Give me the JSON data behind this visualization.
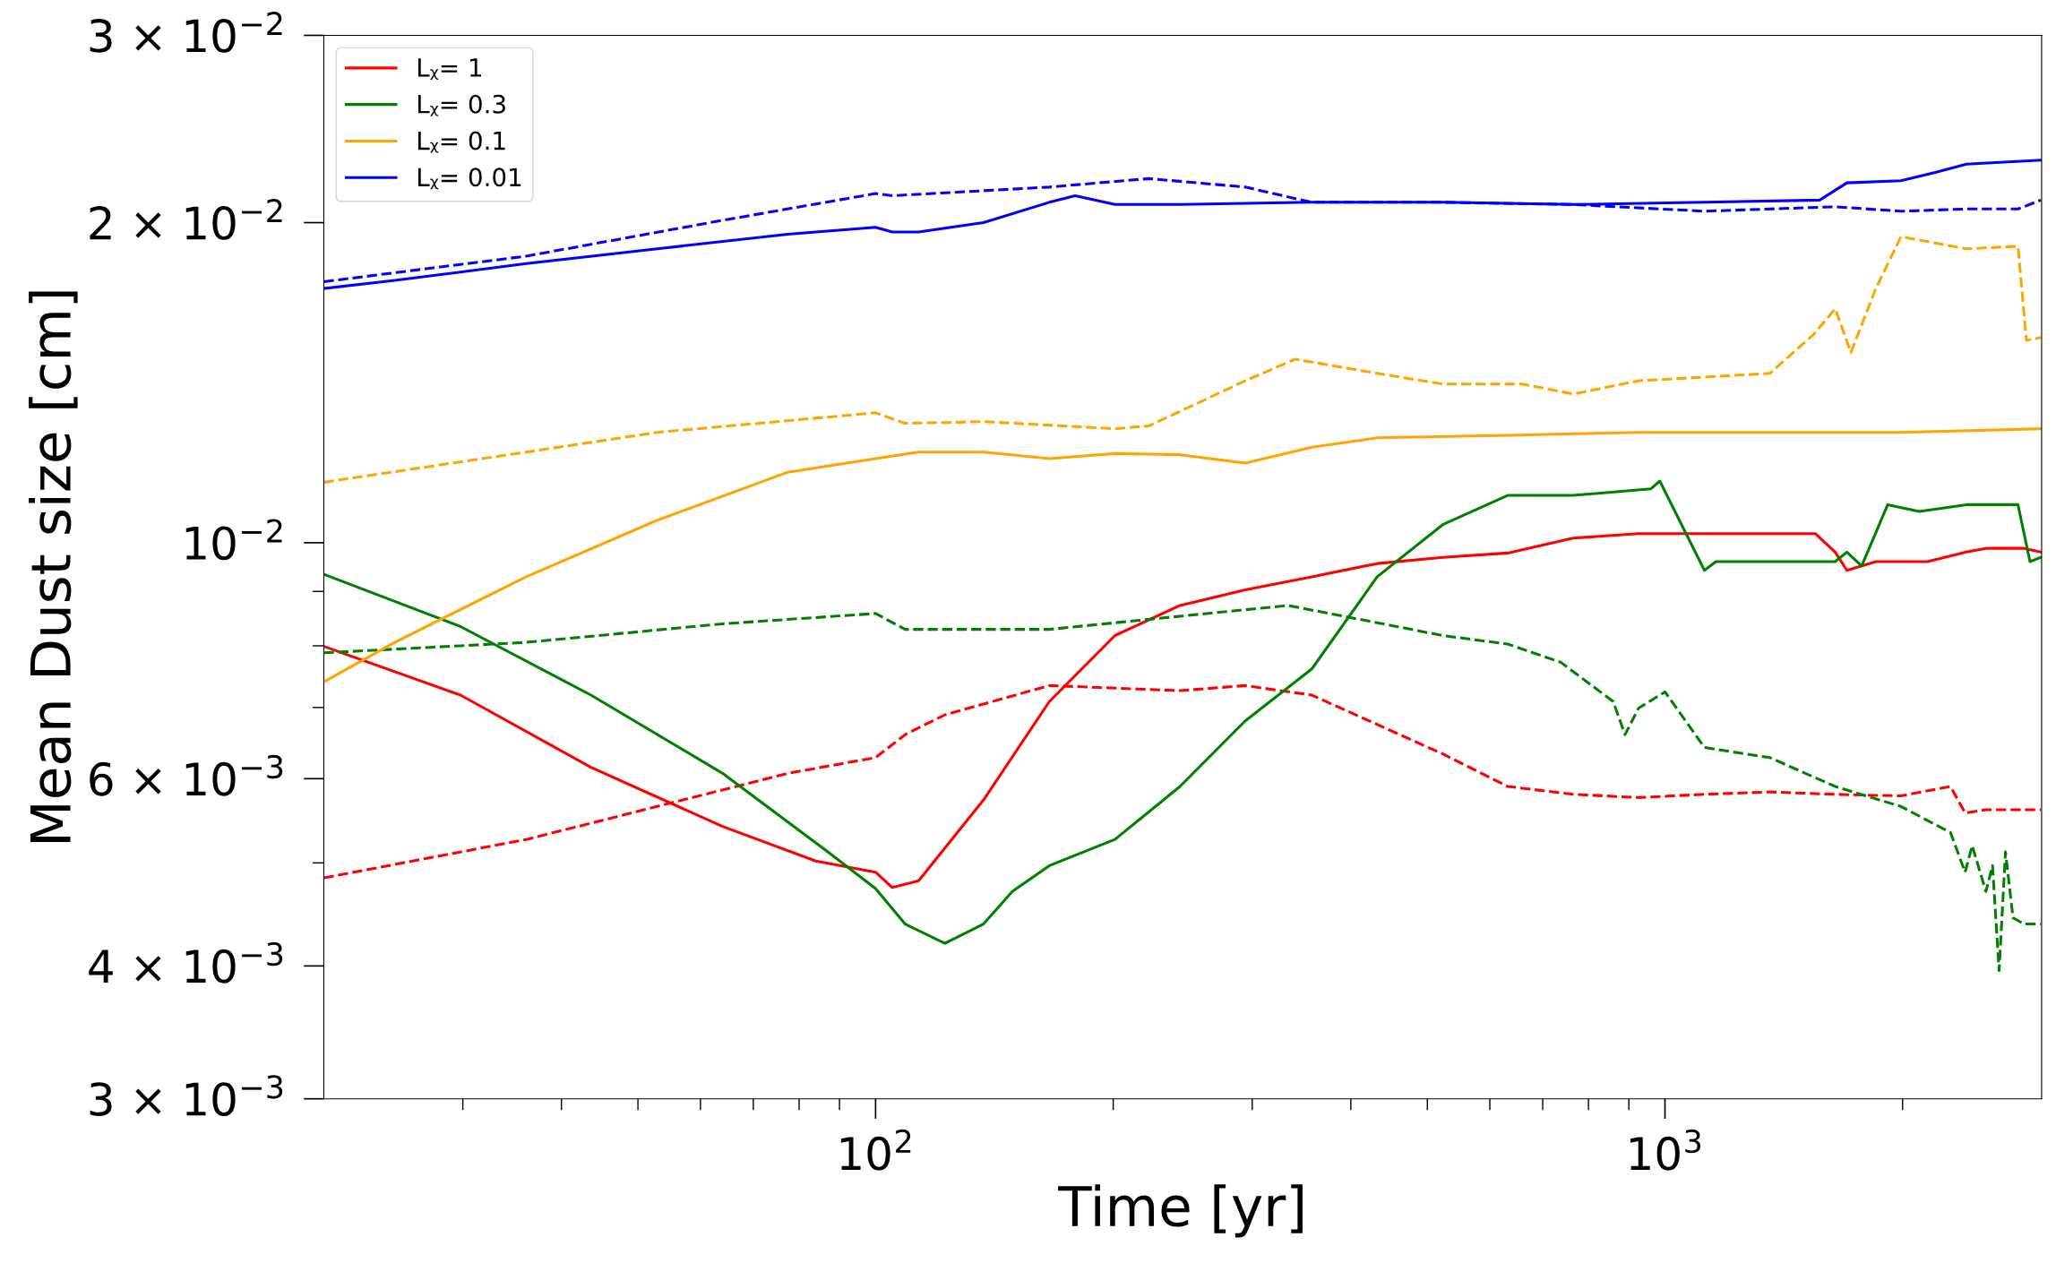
{
  "chart_data": {
    "type": "line",
    "xlabel": "Time [yr]",
    "ylabel": "Mean Dust size [cm]",
    "log": "xy",
    "xlim": [
      20,
      3000
    ],
    "ylim": [
      0.003,
      0.03
    ],
    "xticks": [
      {
        "value": 100,
        "label": "10$^{2}$"
      },
      {
        "value": 1000,
        "label": "10$^{3}$"
      },
      {
        "value": 30,
        "label": null
      },
      {
        "value": 40,
        "label": null
      },
      {
        "value": 50,
        "label": null
      },
      {
        "value": 60,
        "label": null
      },
      {
        "value": 70,
        "label": null
      },
      {
        "value": 80,
        "label": null
      },
      {
        "value": 90,
        "label": null
      },
      {
        "value": 200,
        "label": null
      },
      {
        "value": 300,
        "label": null
      },
      {
        "value": 400,
        "label": null
      },
      {
        "value": 500,
        "label": null
      },
      {
        "value": 600,
        "label": null
      },
      {
        "value": 700,
        "label": null
      },
      {
        "value": 800,
        "label": null
      },
      {
        "value": 900,
        "label": null
      },
      {
        "value": 2000,
        "label": null
      }
    ],
    "yticks": [
      {
        "value": 0.003,
        "label": "3 × 10$^{−3}$"
      },
      {
        "value": 0.004,
        "label": "4 × 10$^{−3}$"
      },
      {
        "value": 0.006,
        "label": "6 × 10$^{−3}$"
      },
      {
        "value": 0.01,
        "label": "10$^{−2}$"
      },
      {
        "value": 0.02,
        "label": "2 × 10$^{−2}$"
      },
      {
        "value": 0.03,
        "label": "3 × 10$^{−2}$"
      },
      {
        "value": 0.005,
        "label": null
      },
      {
        "value": 0.007,
        "label": null
      },
      {
        "value": 0.008,
        "label": null
      },
      {
        "value": 0.009,
        "label": null
      }
    ],
    "grid": false,
    "legend": "top left",
    "marker": "none",
    "series": [
      {
        "name": "Lᵪ= 1",
        "color": "#ff0000",
        "line_style": "solid",
        "x": [
          20,
          29.8,
          43.6,
          64.0,
          84,
          100,
          105,
          113.4,
          137,
          166,
          201,
          243,
          294,
          357,
          432,
          523,
          632,
          765,
          926,
          1122,
          1550,
          1643,
          1700,
          1850,
          2150,
          2409,
          2550,
          2850,
          2993
        ],
        "values": [
          0.00799,
          0.00719,
          0.00615,
          0.00541,
          0.00502,
          0.0049,
          0.00474,
          0.00481,
          0.00573,
          0.00709,
          0.00818,
          0.00873,
          0.00903,
          0.00929,
          0.00956,
          0.00969,
          0.00978,
          0.0101,
          0.0102,
          0.0102,
          0.0102,
          0.0098,
          0.00942,
          0.0096,
          0.0096,
          0.0098,
          0.00988,
          0.00988,
          0.0098
        ]
      },
      {
        "color": "#ff0000",
        "line_style": "dashed",
        "x": [
          20,
          36.1,
          52.9,
          77.4,
          100,
          109,
          122.4,
          166,
          243,
          294,
          357,
          523,
          632,
          765,
          926,
          1122,
          1358,
          1643,
          1990,
          2300,
          2400,
          2550,
          2993
        ],
        "values": [
          0.00484,
          0.00526,
          0.00565,
          0.00607,
          0.00628,
          0.0066,
          0.00689,
          0.00734,
          0.00726,
          0.00734,
          0.00719,
          0.00633,
          0.0059,
          0.0058,
          0.00576,
          0.0058,
          0.00583,
          0.0058,
          0.00578,
          0.0059,
          0.00557,
          0.00561,
          0.00561
        ]
      },
      {
        "name": "Lᵪ= 0.3",
        "color": "#008000",
        "line_style": "solid",
        "x": [
          20,
          29.8,
          43.6,
          64.0,
          87,
          100,
          109,
          122.4,
          137,
          149,
          166,
          201,
          243,
          294,
          357,
          432,
          523,
          632,
          765,
          960,
          985,
          1122,
          1160,
          1643,
          1700,
          1775,
          1915,
          2100,
          2409,
          2800,
          2900,
          2993
        ],
        "values": [
          0.00934,
          0.00834,
          0.00719,
          0.00607,
          0.00512,
          0.00473,
          0.00438,
          0.0042,
          0.00438,
          0.0047,
          0.00497,
          0.00526,
          0.0059,
          0.0068,
          0.00761,
          0.00929,
          0.0104,
          0.01108,
          0.01108,
          0.01124,
          0.01143,
          0.00942,
          0.0096,
          0.0096,
          0.0098,
          0.00951,
          0.01086,
          0.0107,
          0.01086,
          0.01086,
          0.0096,
          0.00969
        ]
      },
      {
        "color": "#008000",
        "line_style": "dashed",
        "x": [
          20,
          36.1,
          64.0,
          100,
          109,
          166,
          243,
          333,
          432,
          523,
          632,
          738,
          860,
          890,
          926,
          1000,
          1122,
          1358,
          1643,
          1990,
          2300,
          2400,
          2450,
          2550,
          2600,
          2650,
          2700,
          2760,
          2850,
          2993
        ],
        "values": [
          0.00788,
          0.00806,
          0.00839,
          0.00858,
          0.00829,
          0.00829,
          0.00853,
          0.00873,
          0.00841,
          0.00818,
          0.00803,
          0.00772,
          0.00709,
          0.0066,
          0.00699,
          0.00724,
          0.00642,
          0.00628,
          0.0059,
          0.00565,
          0.00534,
          0.0049,
          0.00519,
          0.0047,
          0.00497,
          0.00396,
          0.00512,
          0.00444,
          0.00438,
          0.00438
        ]
      },
      {
        "name": "Lᵪ= 0.1",
        "color": "#ffa500",
        "line_style": "solid",
        "x": [
          20,
          24.6,
          36.1,
          52.9,
          77.4,
          100,
          113.4,
          137,
          166,
          201,
          243,
          294,
          357,
          432,
          632,
          926,
          1358,
          1990,
          2993
        ],
        "values": [
          0.0074,
          0.00806,
          0.00929,
          0.0105,
          0.01165,
          0.012,
          0.01217,
          0.01217,
          0.012,
          0.01213,
          0.0121,
          0.01188,
          0.0123,
          0.01255,
          0.01262,
          0.0127,
          0.0127,
          0.0127,
          0.0128
        ]
      },
      {
        "color": "#ffa500",
        "line_style": "dashed",
        "x": [
          20,
          36.1,
          52.9,
          100,
          109,
          137,
          201,
          222,
          294,
          340,
          432,
          523,
          660,
          765,
          926,
          1358,
          1543,
          1643,
          1720,
          1850,
          1990,
          2409,
          2800,
          2870,
          2993
        ],
        "values": [
          0.0114,
          0.01217,
          0.0127,
          0.01325,
          0.01295,
          0.013,
          0.0128,
          0.01288,
          0.0142,
          0.01488,
          0.01443,
          0.0141,
          0.0141,
          0.0138,
          0.0142,
          0.01443,
          0.0157,
          0.0166,
          0.0151,
          0.01734,
          0.0194,
          0.0189,
          0.019,
          0.0155,
          0.0156
        ]
      },
      {
        "name": "Lᵪ= 0.01",
        "color": "#0000ff",
        "line_style": "solid",
        "x": [
          20,
          24.6,
          36.1,
          52.9,
          77.4,
          100,
          105,
          113.4,
          137,
          166,
          179,
          201,
          243,
          357,
          523,
          765,
          1122,
          1570,
          1700,
          1990,
          2200,
          2409,
          2993
        ],
        "values": [
          0.01734,
          0.01765,
          0.0183,
          0.0189,
          0.0195,
          0.0198,
          0.0196,
          0.0196,
          0.02,
          0.0209,
          0.0212,
          0.0208,
          0.0208,
          0.0209,
          0.0209,
          0.0208,
          0.0209,
          0.021,
          0.0218,
          0.0219,
          0.0223,
          0.0227,
          0.0229
        ]
      },
      {
        "color": "#0000ff",
        "line_style": "dashed",
        "x": [
          20,
          36.1,
          64.0,
          100,
          105,
          166,
          222,
          294,
          357,
          523,
          765,
          1122,
          1643,
          1990,
          2409,
          2800,
          2993
        ],
        "values": [
          0.0176,
          0.0186,
          0.0201,
          0.0213,
          0.0212,
          0.0216,
          0.022,
          0.0216,
          0.0209,
          0.0209,
          0.0208,
          0.0205,
          0.0207,
          0.0205,
          0.0206,
          0.0206,
          0.021
        ]
      }
    ]
  }
}
